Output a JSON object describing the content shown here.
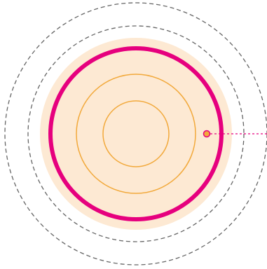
{
  "diagram": {
    "colors": {
      "background": "#ffffff",
      "fill_disc": "#fde9d3",
      "inner_ring_stroke": "#f2a93b",
      "highlight_ring_stroke": "#e6007e",
      "guide_ring_stroke": "#666666",
      "marker_fill": "#f2a93b",
      "marker_stroke": "#e6007e",
      "pointer_line": "#e6007e"
    },
    "rings": [
      {
        "id": "outer-dashed-ring",
        "style": "dashed"
      },
      {
        "id": "middle-dashed-ring",
        "style": "dashed"
      },
      {
        "id": "filled-disc",
        "style": "filled"
      },
      {
        "id": "highlight-ring",
        "style": "solid-thick"
      },
      {
        "id": "inner-ring-large",
        "style": "solid-thin"
      },
      {
        "id": "inner-ring-small",
        "style": "solid-thin"
      }
    ],
    "marker": {
      "icon": "dot-marker-icon"
    },
    "pointer": {
      "style": "dashed"
    }
  }
}
